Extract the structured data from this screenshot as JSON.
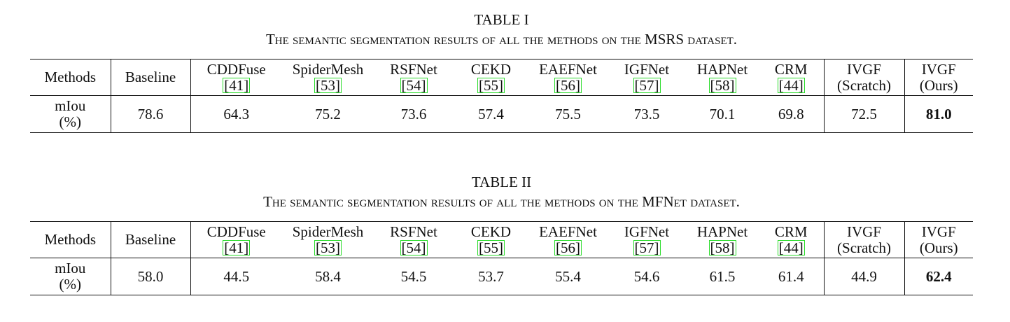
{
  "tables": [
    {
      "label": "TABLE I",
      "caption": "The semantic segmentation results of all the methods on the MSRS dataset.",
      "header": [
        {
          "lines": [
            "Methods"
          ]
        },
        {
          "lines": [
            "Baseline"
          ]
        },
        {
          "lines": [
            "CDDFuse"
          ],
          "cite": "[41]"
        },
        {
          "lines": [
            "SpiderMesh"
          ],
          "cite": "[53]"
        },
        {
          "lines": [
            "RSFNet"
          ],
          "cite": "[54]"
        },
        {
          "lines": [
            "CEKD"
          ],
          "cite": "[55]"
        },
        {
          "lines": [
            "EAEFNet"
          ],
          "cite": "[56]"
        },
        {
          "lines": [
            "IGFNet"
          ],
          "cite": "[57]"
        },
        {
          "lines": [
            "HAPNet"
          ],
          "cite": "[58]"
        },
        {
          "lines": [
            "CRM"
          ],
          "cite": "[44]"
        },
        {
          "lines": [
            "IVGF",
            "(Scratch)"
          ]
        },
        {
          "lines": [
            "IVGF",
            "(Ours)"
          ]
        }
      ],
      "row_label": [
        "mIou",
        "(%)"
      ],
      "values": [
        "78.6",
        "64.3",
        "75.2",
        "73.6",
        "57.4",
        "75.5",
        "73.5",
        "70.1",
        "69.8",
        "72.5",
        "81.0"
      ]
    },
    {
      "label": "TABLE II",
      "caption": "The semantic segmentation results of all the methods on the MFNet dataset.",
      "header": [
        {
          "lines": [
            "Methods"
          ]
        },
        {
          "lines": [
            "Baseline"
          ]
        },
        {
          "lines": [
            "CDDFuse"
          ],
          "cite": "[41]"
        },
        {
          "lines": [
            "SpiderMesh"
          ],
          "cite": "[53]"
        },
        {
          "lines": [
            "RSFNet"
          ],
          "cite": "[54]"
        },
        {
          "lines": [
            "CEKD"
          ],
          "cite": "[55]"
        },
        {
          "lines": [
            "EAEFNet"
          ],
          "cite": "[56]"
        },
        {
          "lines": [
            "IGFNet"
          ],
          "cite": "[57]"
        },
        {
          "lines": [
            "HAPNet"
          ],
          "cite": "[58]"
        },
        {
          "lines": [
            "CRM"
          ],
          "cite": "[44]"
        },
        {
          "lines": [
            "IVGF",
            "(Scratch)"
          ]
        },
        {
          "lines": [
            "IVGF",
            "(Ours)"
          ]
        }
      ],
      "row_label": [
        "mIou",
        "(%)"
      ],
      "values": [
        "58.0",
        "44.5",
        "58.4",
        "54.5",
        "53.7",
        "55.4",
        "54.6",
        "61.5",
        "61.4",
        "44.9",
        "62.4"
      ]
    }
  ]
}
